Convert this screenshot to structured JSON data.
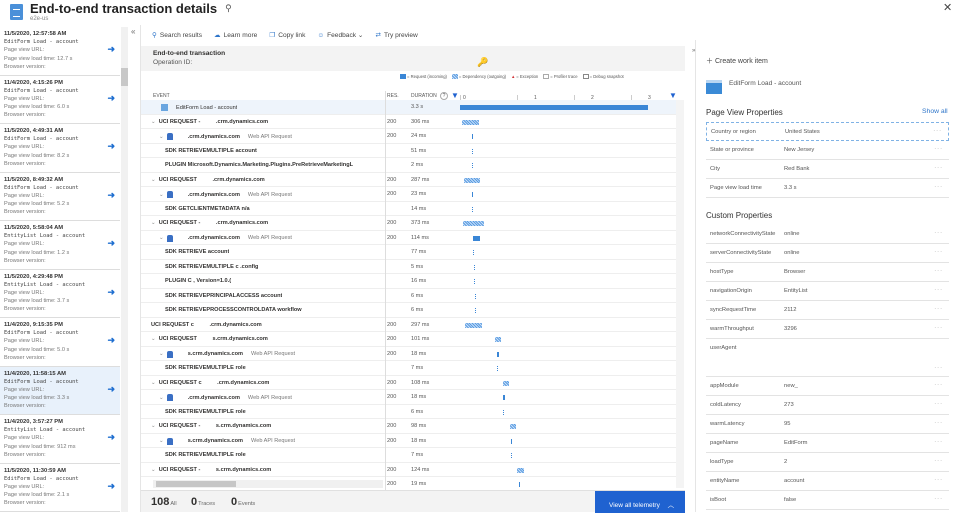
{
  "header": {
    "title": "End-to-end transaction details",
    "subtitle": "e2e-us",
    "collapse": "«",
    "close": "✕",
    "pin": "⚲"
  },
  "list": [
    {
      "date": "11/5/2020, 12:57:58 AM",
      "event": "EditForm Load - account",
      "url": "Page view URL:",
      "load": "Page view load time: 12.7 s",
      "browser": "Browser version:"
    },
    {
      "date": "11/4/2020, 4:15:26 PM",
      "event": "EditForm Load - account",
      "url": "Page view URL:",
      "load": "Page view load time: 6.0 s",
      "browser": "Browser version:"
    },
    {
      "date": "11/5/2020, 4:49:31 AM",
      "event": "EditForm Load - account",
      "url": "Page view URL:",
      "load": "Page view load time: 8.2 s",
      "browser": "Browser version:"
    },
    {
      "date": "11/5/2020, 8:49:32 AM",
      "event": "EditForm Load - account",
      "url": "Page view URL:",
      "load": "Page view load time: 5.2 s",
      "browser": "Browser version:"
    },
    {
      "date": "11/5/2020, 5:58:04 AM",
      "event": "EntityList Load - account",
      "url": "Page view URL:",
      "load": "Page view load time: 1.2 s",
      "browser": "Browser version:"
    },
    {
      "date": "11/5/2020, 4:29:48 PM",
      "event": "EntityList Load - account",
      "url": "Page view URL:",
      "load": "Page view load time: 3.7 s",
      "browser": "Browser version:"
    },
    {
      "date": "11/4/2020, 9:15:35 PM",
      "event": "EditForm Load - account",
      "url": "Page view URL:",
      "load": "Page view load time: 5.0 s",
      "browser": "Browser version:"
    },
    {
      "date": "11/4/2020, 11:58:15 AM",
      "event": "EditForm Load - account",
      "url": "Page view URL:",
      "load": "Page view load time: 3.3 s",
      "browser": "Browser version:",
      "selected": true
    },
    {
      "date": "11/4/2020, 3:57:27 PM",
      "event": "EntityList Load - account",
      "url": "Page view URL:",
      "load": "Page view load time: 912 ms",
      "browser": "Browser version:"
    },
    {
      "date": "11/5/2020, 11:30:59 AM",
      "event": "EditForm Load - account",
      "url": "Page view URL:",
      "load": "Page view load time: 2.1 s",
      "browser": "Browser version:"
    }
  ],
  "toolbar": {
    "search": "Search results",
    "learn": "Learn more",
    "copy": "Copy link",
    "feedback": "Feedback",
    "preview": "Try preview"
  },
  "transaction": {
    "title": "End-to-end transaction",
    "operation": "Operation ID:"
  },
  "legend": [
    "= Request (incoming)",
    "= Dependency (outgoing)",
    "= Exception",
    "= Profiler trace",
    "= Debug snapshot"
  ],
  "colors": {
    "request": "#3a86d6",
    "exception": "#d13438",
    "accent": "#1f62d0"
  },
  "columns": {
    "event": "EVENT",
    "res": "RES.",
    "duration": "DURATION",
    "help": "?",
    "ticks": [
      "0",
      "1 S",
      "2 S",
      "3 S"
    ]
  },
  "rows": [
    {
      "kind": "page",
      "level": 0,
      "name": "EditForm Load - account",
      "res": "",
      "duration": "3.3 s",
      "start_ms": 0,
      "dur_ms": 3300
    },
    {
      "kind": "req",
      "level": 0,
      "name": "UCI REQUEST -",
      "domain": ".crm.dynamics.com",
      "res": "200",
      "duration": "306 ms",
      "start_ms": 35,
      "dur_ms": 306
    },
    {
      "kind": "dep",
      "level": 1,
      "name": ".crm.dynamics.com",
      "detail": "Web API Request",
      "res": "200",
      "duration": "24 ms",
      "start_ms": 210,
      "dur_ms": 24
    },
    {
      "kind": "sub",
      "level": 2,
      "name": "SDK RETRIEVEMULTIPLE account",
      "res": "",
      "duration": "51 ms",
      "start_ms": 210,
      "dur_ms": 51
    },
    {
      "kind": "sub",
      "level": 2,
      "name": "PLUGIN Microsoft.Dynamics.Marketing.Plugins.PreRetrieveMarketingL",
      "res": "",
      "duration": "2 ms",
      "start_ms": 215,
      "dur_ms": 2
    },
    {
      "kind": "req",
      "level": 0,
      "name": "UCI REQUEST",
      "domain": ".crm.dynamics.com",
      "res": "200",
      "duration": "287 ms",
      "start_ms": 70,
      "dur_ms": 287
    },
    {
      "kind": "dep",
      "level": 1,
      "name": ".crm.dynamics.com",
      "detail": "Web API Request",
      "res": "200",
      "duration": "23 ms",
      "start_ms": 210,
      "dur_ms": 23
    },
    {
      "kind": "sub",
      "level": 2,
      "name": "SDK GETCLIENTMETADATA n/a",
      "res": "",
      "duration": "14 ms",
      "start_ms": 210,
      "dur_ms": 14
    },
    {
      "kind": "req",
      "level": 0,
      "name": "UCI REQUEST -",
      "domain": ".crm.dynamics.com",
      "res": "200",
      "duration": "373 ms",
      "start_ms": 55,
      "dur_ms": 373
    },
    {
      "kind": "dep",
      "level": 1,
      "name": ".crm.dynamics.com",
      "detail": "Web API Request",
      "res": "200",
      "duration": "114 ms",
      "start_ms": 230,
      "dur_ms": 114
    },
    {
      "kind": "sub",
      "level": 2,
      "name": "SDK RETRIEVE account",
      "res": "",
      "duration": "77 ms",
      "start_ms": 230,
      "dur_ms": 77
    },
    {
      "kind": "sub",
      "level": 2,
      "name": "SDK RETRIEVEMULTIPLE c      .config",
      "res": "",
      "duration": "5 ms",
      "start_ms": 250,
      "dur_ms": 5
    },
    {
      "kind": "sub",
      "level": 2,
      "name": "PLUGIN C                                                   , Version=1.0.(",
      "res": "",
      "duration": "16 ms",
      "start_ms": 250,
      "dur_ms": 16
    },
    {
      "kind": "sub",
      "level": 2,
      "name": "SDK RETRIEVEPRINCIPALACCESS account",
      "res": "",
      "duration": "6 ms",
      "start_ms": 265,
      "dur_ms": 6
    },
    {
      "kind": "sub",
      "level": 2,
      "name": "SDK RETRIEVEPROCESSCONTROLDATA workflow",
      "res": "",
      "duration": "6 ms",
      "start_ms": 270,
      "dur_ms": 6
    },
    {
      "kind": "req",
      "level": 0,
      "nochev": true,
      "name": "UCI REQUEST c",
      "domain": ".crm.dynamics.com",
      "res": "200",
      "duration": "297 ms",
      "start_ms": 90,
      "dur_ms": 297
    },
    {
      "kind": "req",
      "level": 0,
      "name": "UCI REQUEST",
      "domain": "s.crm.dynamics.com",
      "res": "200",
      "duration": "101 ms",
      "start_ms": 610,
      "dur_ms": 101
    },
    {
      "kind": "dep",
      "level": 1,
      "name": "s.crm.dynamics.com",
      "detail": "Web API Request",
      "res": "200",
      "duration": "18 ms",
      "start_ms": 650,
      "dur_ms": 18
    },
    {
      "kind": "sub",
      "level": 2,
      "name": "SDK RETRIEVEMULTIPLE role",
      "res": "",
      "duration": "7 ms",
      "start_ms": 655,
      "dur_ms": 7
    },
    {
      "kind": "req",
      "level": 0,
      "name": "UCI REQUEST c",
      "domain": ".crm.dynamics.com",
      "res": "200",
      "duration": "108 ms",
      "start_ms": 750,
      "dur_ms": 108
    },
    {
      "kind": "dep",
      "level": 1,
      "name": ".crm.dynamics.com",
      "detail": "Web API Request",
      "res": "200",
      "duration": "18 ms",
      "start_ms": 755,
      "dur_ms": 18
    },
    {
      "kind": "sub",
      "level": 2,
      "name": "SDK RETRIEVEMULTIPLE role",
      "res": "",
      "duration": "6 ms",
      "start_ms": 760,
      "dur_ms": 6
    },
    {
      "kind": "req",
      "level": 0,
      "name": "UCI REQUEST -",
      "domain": "s.crm.dynamics.com",
      "res": "200",
      "duration": "98 ms",
      "start_ms": 880,
      "dur_ms": 98
    },
    {
      "kind": "dep",
      "level": 1,
      "name": "s.crm.dynamics.com",
      "detail": "Web API Request",
      "res": "200",
      "duration": "18 ms",
      "start_ms": 890,
      "dur_ms": 18
    },
    {
      "kind": "sub",
      "level": 2,
      "name": "SDK RETRIEVEMULTIPLE role",
      "res": "",
      "duration": "7 ms",
      "start_ms": 895,
      "dur_ms": 7
    },
    {
      "kind": "req",
      "level": 0,
      "name": "UCI REQUEST -",
      "domain": "s.crm.dynamics.com",
      "res": "200",
      "duration": "124 ms",
      "start_ms": 1000,
      "dur_ms": 124
    },
    {
      "kind": "dep",
      "level": 1,
      "name": "",
      "detail": "",
      "res": "200",
      "duration": "19 ms",
      "start_ms": 1030,
      "dur_ms": 19
    }
  ],
  "footer": {
    "all_count": "108",
    "all_label": "All",
    "traces_count": "0",
    "traces_label": "Traces",
    "events_count": "0",
    "events_label": "Events",
    "view_all": "View all telemetry"
  },
  "details": {
    "create": "Create work item",
    "event": "EditForm Load - account",
    "page_view_title": "Page View Properties",
    "show_all": "Show all",
    "custom_title": "Custom Properties",
    "more": "···",
    "page_view": [
      {
        "k": "Country or region",
        "v": "United States"
      },
      {
        "k": "State or province",
        "v": "New Jersey"
      },
      {
        "k": "City",
        "v": "Red Bank"
      },
      {
        "k": "Page view load time",
        "v": "3.3 s"
      }
    ],
    "custom": [
      {
        "k": "networkConnectivityState",
        "v": "online"
      },
      {
        "k": "serverConnectivityState",
        "v": "online"
      },
      {
        "k": "hostType",
        "v": "Browser"
      },
      {
        "k": "navigationOrigin",
        "v": "EntityList"
      },
      {
        "k": "syncRequestTime",
        "v": "2112"
      },
      {
        "k": "warmThroughput",
        "v": "3296"
      },
      {
        "k": "userAgent",
        "v": ""
      },
      {
        "k": "appModule",
        "v": "new_"
      },
      {
        "k": "coldLatency",
        "v": "273"
      },
      {
        "k": "warmLatency",
        "v": "95"
      },
      {
        "k": "pageName",
        "v": "EditForm"
      },
      {
        "k": "loadType",
        "v": "2"
      },
      {
        "k": "entityName",
        "v": "account"
      },
      {
        "k": "isBoot",
        "v": "false"
      }
    ]
  }
}
